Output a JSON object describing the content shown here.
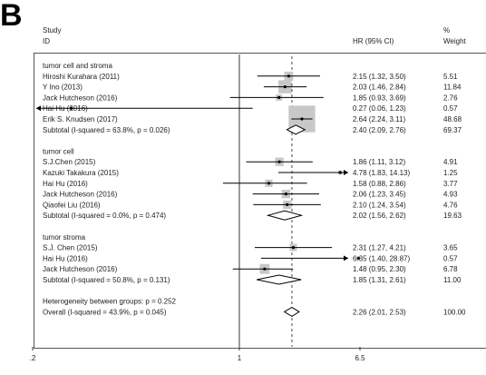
{
  "panel_label": "B",
  "header": {
    "study": "Study",
    "id": "ID",
    "hr": "HR (95% CI)",
    "pct": "%",
    "weight": "Weight"
  },
  "chart_data": {
    "type": "forest",
    "x_scale": "log",
    "xlim": [
      0.2,
      6.5
    ],
    "xticks": [
      ".2",
      "1",
      "6.5"
    ],
    "null_line": 1,
    "overall_line": 2.26,
    "groups": [
      {
        "name": "tumor cell and stroma",
        "studies": [
          {
            "label": "Hiroshi Kurahara (2011)",
            "hr": 2.15,
            "lo": 1.32,
            "hi": 3.5,
            "ci": "2.15 (1.32, 3.50)",
            "weight": "5.51"
          },
          {
            "label": "Y Ino (2013)",
            "hr": 2.03,
            "lo": 1.46,
            "hi": 2.84,
            "ci": "2.03 (1.46, 2.84)",
            "weight": "11.84"
          },
          {
            "label": "Jack Hutcheson (2016)",
            "hr": 1.85,
            "lo": 0.93,
            "hi": 3.69,
            "ci": "1.85 (0.93, 3.69)",
            "weight": "2.76"
          },
          {
            "label": "Hai Hu (2016)",
            "hr": 0.27,
            "lo": 0.06,
            "hi": 1.23,
            "ci": "0.27 (0.06, 1.23)",
            "weight": "0.57"
          },
          {
            "label": "Erik S. Knudsen (2017)",
            "hr": 2.64,
            "lo": 2.24,
            "hi": 3.11,
            "ci": "2.64 (2.24, 3.11)",
            "weight": "48.68"
          }
        ],
        "subtotal": {
          "label": "Subtotal  (I-squared = 63.8%, p = 0.026)",
          "hr": 2.4,
          "lo": 2.09,
          "hi": 2.76,
          "ci": "2.40 (2.09, 2.76)",
          "weight": "69.37"
        }
      },
      {
        "name": "tumor cell",
        "studies": [
          {
            "label": "S.J.Chen (2015)",
            "hr": 1.86,
            "lo": 1.11,
            "hi": 3.12,
            "ci": "1.86 (1.11, 3.12)",
            "weight": "4.91"
          },
          {
            "label": "Kazuki Takakura (2015)",
            "hr": 4.78,
            "lo": 1.83,
            "hi": 14.13,
            "ci": "4.78 (1.83, 14.13)",
            "weight": "1.25"
          },
          {
            "label": "Hai Hu (2016)",
            "hr": 1.58,
            "lo": 0.88,
            "hi": 2.86,
            "ci": "1.58 (0.88, 2.86)",
            "weight": "3.77"
          },
          {
            "label": "Jack Hutcheson (2016)",
            "hr": 2.06,
            "lo": 1.23,
            "hi": 3.45,
            "ci": "2.06 (1.23, 3.45)",
            "weight": "4.93"
          },
          {
            "label": "Qiaofei Liu (2016)",
            "hr": 2.1,
            "lo": 1.24,
            "hi": 3.54,
            "ci": "2.10 (1.24, 3.54)",
            "weight": "4.76"
          }
        ],
        "subtotal": {
          "label": "Subtotal  (I-squared = 0.0%, p = 0.474)",
          "hr": 2.02,
          "lo": 1.56,
          "hi": 2.62,
          "ci": "2.02 (1.56, 2.62)",
          "weight": "19.63"
        }
      },
      {
        "name": "tumor stroma",
        "studies": [
          {
            "label": "S.J. Chen (2015)",
            "hr": 2.31,
            "lo": 1.27,
            "hi": 4.21,
            "ci": "2.31 (1.27, 4.21)",
            "weight": "3.65"
          },
          {
            "label": "Hai Hu (2016)",
            "hr": 6.35,
            "lo": 1.4,
            "hi": 28.87,
            "ci": "6.35 (1.40, 28.87)",
            "weight": "0.57"
          },
          {
            "label": "Jack Hutcheson (2016)",
            "hr": 1.48,
            "lo": 0.95,
            "hi": 2.3,
            "ci": "1.48 (0.95, 2.30)",
            "weight": "6.78"
          }
        ],
        "subtotal": {
          "label": "Subtotal  (I-squared = 50.8%, p = 0.131)",
          "hr": 1.85,
          "lo": 1.31,
          "hi": 2.61,
          "ci": "1.85 (1.31, 2.61)",
          "weight": "11.00"
        }
      }
    ],
    "heterogeneity": "Heterogeneity between groups: p = 0.252",
    "overall": {
      "label": "Overall  (I-squared = 43.9%, p = 0.045)",
      "hr": 2.26,
      "lo": 2.01,
      "hi": 2.53,
      "ci": "2.26 (2.01, 2.53)",
      "weight": "100.00"
    }
  }
}
